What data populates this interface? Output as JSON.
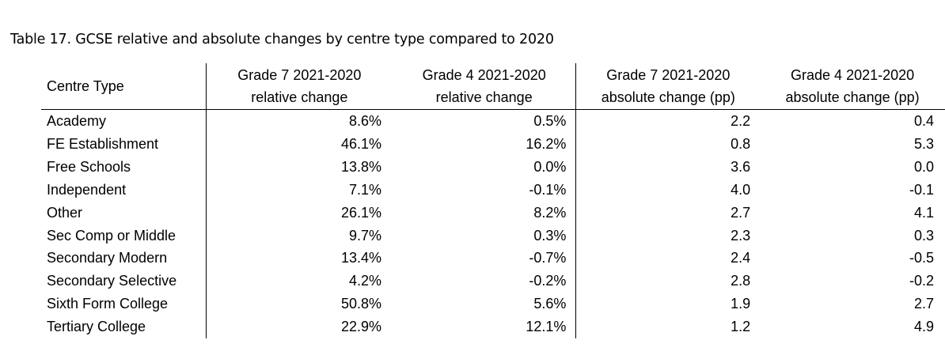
{
  "caption": "Table 17. GCSE relative and absolute changes by centre type compared to 2020",
  "table": {
    "headers": [
      {
        "line1": "Centre Type",
        "line2": ""
      },
      {
        "line1": "Grade 7 2021-2020",
        "line2": "relative change"
      },
      {
        "line1": "Grade 4 2021-2020",
        "line2": "relative change"
      },
      {
        "line1": "Grade 7 2021-2020",
        "line2": "absolute change (pp)"
      },
      {
        "line1": "Grade 4 2021-2020",
        "line2": "absolute change (pp)"
      }
    ],
    "rows": [
      {
        "name": "Academy",
        "g7_rel": "8.6%",
        "g4_rel": "0.5%",
        "g7_abs": "2.2",
        "g4_abs": "0.4"
      },
      {
        "name": "FE Establishment",
        "g7_rel": "46.1%",
        "g4_rel": "16.2%",
        "g7_abs": "0.8",
        "g4_abs": "5.3"
      },
      {
        "name": "Free Schools",
        "g7_rel": "13.8%",
        "g4_rel": "0.0%",
        "g7_abs": "3.6",
        "g4_abs": "0.0"
      },
      {
        "name": "Independent",
        "g7_rel": "7.1%",
        "g4_rel": "-0.1%",
        "g7_abs": "4.0",
        "g4_abs": "-0.1"
      },
      {
        "name": "Other",
        "g7_rel": "26.1%",
        "g4_rel": "8.2%",
        "g7_abs": "2.7",
        "g4_abs": "4.1"
      },
      {
        "name": "Sec Comp or Middle",
        "g7_rel": "9.7%",
        "g4_rel": "0.3%",
        "g7_abs": "2.3",
        "g4_abs": "0.3"
      },
      {
        "name": "Secondary Modern",
        "g7_rel": "13.4%",
        "g4_rel": "-0.7%",
        "g7_abs": "2.4",
        "g4_abs": "-0.5"
      },
      {
        "name": "Secondary Selective",
        "g7_rel": "4.2%",
        "g4_rel": "-0.2%",
        "g7_abs": "2.8",
        "g4_abs": "-0.2"
      },
      {
        "name": "Sixth Form College",
        "g7_rel": "50.8%",
        "g4_rel": "5.6%",
        "g7_abs": "1.9",
        "g4_abs": "2.7"
      },
      {
        "name": "Tertiary College",
        "g7_rel": "22.9%",
        "g4_rel": "12.1%",
        "g7_abs": "1.2",
        "g4_abs": "4.9"
      }
    ]
  }
}
